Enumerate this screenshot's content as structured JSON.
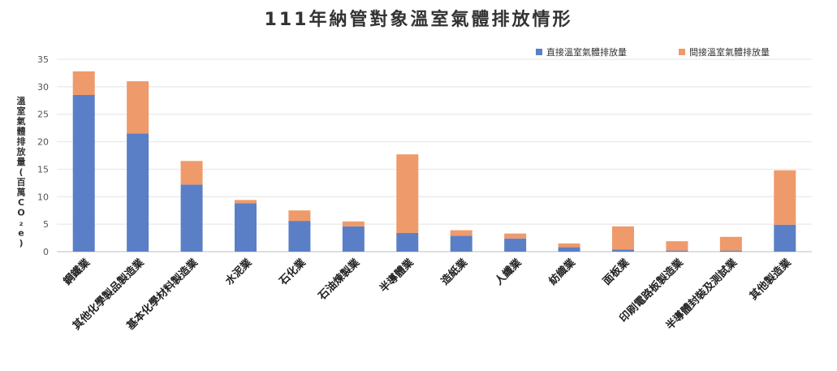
{
  "chart_data": {
    "type": "bar",
    "stacked": true,
    "title": "111年納管對象溫室氣體排放情形",
    "ylabel": "溫室氣體排放量(百萬CO₂e)",
    "ylim": [
      0,
      35
    ],
    "yticks": [
      0,
      5,
      10,
      15,
      20,
      25,
      30,
      35
    ],
    "grid": true,
    "legend_position": "top-right",
    "categories": [
      "鋼鐵業",
      "其他化學製品製造業",
      "基本化學材料製造業",
      "水泥業",
      "石化業",
      "石油煉製業",
      "半導體業",
      "造紙業",
      "人纖業",
      "紡織業",
      "面板業",
      "印刷電路板製造業",
      "半導體封裝及測試業",
      "其他製造業"
    ],
    "series": [
      {
        "name": "直接溫室氣體排放量",
        "color": "#5b7fc7",
        "values": [
          28.5,
          21.5,
          12.2,
          8.8,
          5.6,
          4.6,
          3.4,
          2.9,
          2.4,
          0.8,
          0.4,
          0.2,
          0.2,
          4.9
        ]
      },
      {
        "name": "間接溫室氣體排放量",
        "color": "#ef9a6b",
        "values": [
          4.3,
          9.5,
          4.3,
          0.6,
          1.9,
          0.9,
          14.3,
          1.0,
          0.9,
          0.7,
          4.2,
          1.7,
          2.5,
          9.9
        ]
      }
    ]
  }
}
